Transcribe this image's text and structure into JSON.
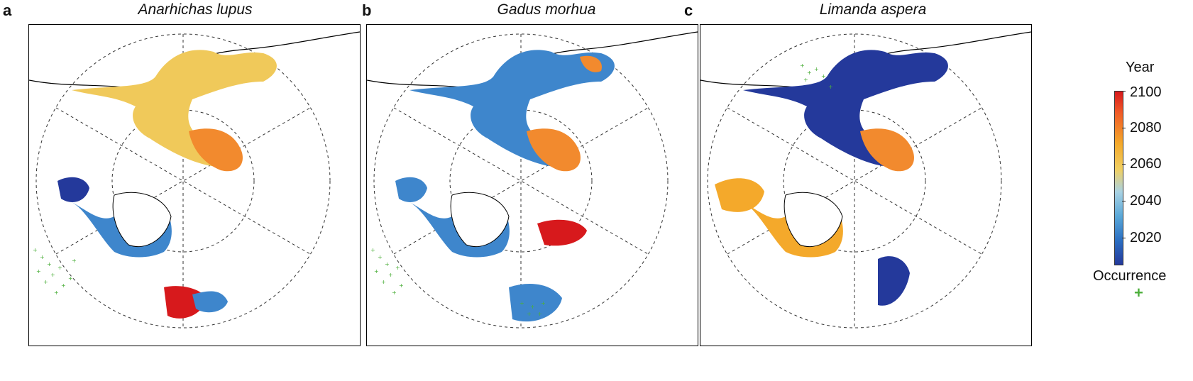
{
  "panels": [
    {
      "letter": "a",
      "title": "Anarhichas lupus"
    },
    {
      "letter": "b",
      "title": "Gadus morhua"
    },
    {
      "letter": "c",
      "title": "Limanda aspera"
    }
  ],
  "legend": {
    "title": "Year",
    "ticks": [
      "2100",
      "2080",
      "2060",
      "2040",
      "2020"
    ],
    "occurrence_label": "Occurrence",
    "occurrence_symbol": "+"
  },
  "colors": {
    "late": "#d7191c",
    "orange": "#f28a2e",
    "yellow": "#f0c95a",
    "light_blue": "#9fcbe3",
    "mid_blue": "#3e86cc",
    "dark_blue": "#24399b",
    "occurrence": "#4caf3b"
  }
}
